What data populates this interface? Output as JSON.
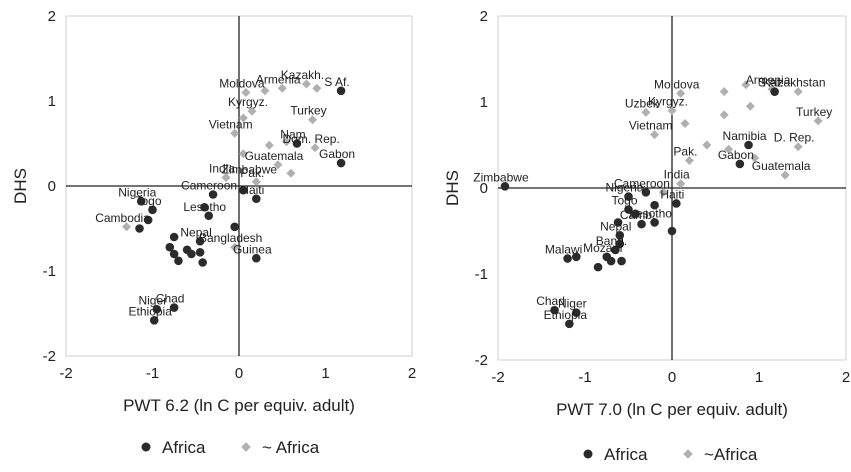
{
  "chart_data": [
    {
      "type": "scatter",
      "xlabel": "PWT 6.2 (ln C per equiv. adult)",
      "ylabel": "DHS",
      "xlim": [
        -2,
        2
      ],
      "ylim": [
        -2,
        2
      ],
      "xticks": [
        "-2",
        "-1",
        "0",
        "1",
        "2"
      ],
      "yticks": [
        "-2",
        "-1",
        "0",
        "1",
        "2"
      ],
      "grid": "off",
      "series": [
        {
          "name": "Africa",
          "points": [
            {
              "x": 1.18,
              "y": 0.27,
              "label": "Gabon"
            },
            {
              "x": 0.67,
              "y": 0.5,
              "label": "Nam"
            },
            {
              "x": 1.18,
              "y": 1.12,
              "label": "S Af."
            },
            {
              "x": -1.13,
              "y": -0.18,
              "label": "Nigeria"
            },
            {
              "x": -1.0,
              "y": -0.28,
              "label": "Togo"
            },
            {
              "x": -1.15,
              "y": -0.5,
              "label": ""
            },
            {
              "x": -1.05,
              "y": -0.4,
              "label": ""
            },
            {
              "x": -0.3,
              "y": -0.1,
              "label": "Cameroon"
            },
            {
              "x": -0.35,
              "y": -0.35,
              "label": "Lesotho"
            },
            {
              "x": -0.4,
              "y": -0.25,
              "label": ""
            },
            {
              "x": 0.05,
              "y": -0.05,
              "label": ""
            },
            {
              "x": 0.2,
              "y": -0.15,
              "label": "Haiti"
            },
            {
              "x": -0.45,
              "y": -0.65,
              "label": "Nepal"
            },
            {
              "x": -0.6,
              "y": -0.75,
              "label": ""
            },
            {
              "x": -0.75,
              "y": -0.8,
              "label": ""
            },
            {
              "x": -0.7,
              "y": -0.88,
              "label": ""
            },
            {
              "x": -0.55,
              "y": -0.8,
              "label": ""
            },
            {
              "x": -0.42,
              "y": -0.9,
              "label": ""
            },
            {
              "x": -0.45,
              "y": -0.78,
              "label": ""
            },
            {
              "x": -0.8,
              "y": -0.72,
              "label": ""
            },
            {
              "x": -0.75,
              "y": -0.6,
              "label": ""
            },
            {
              "x": -0.05,
              "y": -0.48,
              "label": ""
            },
            {
              "x": 0.2,
              "y": -0.85,
              "label": "Guinea"
            },
            {
              "x": -0.75,
              "y": -1.43,
              "label": "Chad"
            },
            {
              "x": -0.95,
              "y": -1.45,
              "label": "Niger"
            },
            {
              "x": -0.98,
              "y": -1.58,
              "label": "Ethiopia"
            }
          ]
        },
        {
          "name": "~ Africa",
          "points": [
            {
              "x": 0.5,
              "y": 1.15,
              "label": "Armenia"
            },
            {
              "x": 0.78,
              "y": 1.2,
              "label": "Kazakh."
            },
            {
              "x": 0.3,
              "y": 1.12,
              "label": ""
            },
            {
              "x": 0.9,
              "y": 1.15,
              "label": ""
            },
            {
              "x": 0.08,
              "y": 1.1,
              "label": "Moldova"
            },
            {
              "x": 0.15,
              "y": 0.88,
              "label": "Kyrgyz."
            },
            {
              "x": 0.05,
              "y": 0.8,
              "label": ""
            },
            {
              "x": 0.85,
              "y": 0.78,
              "label": "Turkey"
            },
            {
              "x": -0.05,
              "y": 0.62,
              "label": "Vietnam"
            },
            {
              "x": 0.05,
              "y": 0.38,
              "label": ""
            },
            {
              "x": 0.35,
              "y": 0.48,
              "label": ""
            },
            {
              "x": 0.55,
              "y": 0.52,
              "label": ""
            },
            {
              "x": 0.88,
              "y": 0.45,
              "label": "Dom. Rep."
            },
            {
              "x": 0.45,
              "y": 0.25,
              "label": "Guatemala"
            },
            {
              "x": -0.15,
              "y": 0.1,
              "label": "India"
            },
            {
              "x": 0.2,
              "y": 0.05,
              "label": "Pak."
            },
            {
              "x": 0.6,
              "y": 0.15,
              "label": ""
            },
            {
              "x": -1.3,
              "y": -0.48,
              "label": "Cambodia"
            },
            {
              "x": -0.05,
              "y": -0.72,
              "label": "Bangladesh"
            }
          ]
        }
      ],
      "annotations": [
        {
          "text": "Zimbabwe",
          "x": 0.12,
          "y": 0.1
        }
      ],
      "legend": "bottom",
      "colors": {
        "Africa": "#2b2b2b",
        "~ Africa": "#b0b0b0"
      }
    },
    {
      "type": "scatter",
      "xlabel": "PWT 7.0 (ln C per equiv. adult)",
      "ylabel": "DHS",
      "xlim": [
        -2,
        2
      ],
      "ylim": [
        -2,
        2
      ],
      "xticks": [
        "-2",
        "-1",
        "0",
        "1",
        "2"
      ],
      "yticks": [
        "-2",
        "-1",
        "0",
        "1",
        "2"
      ],
      "grid": "off",
      "series": [
        {
          "name": "Africa",
          "points": [
            {
              "x": -1.92,
              "y": 0.02,
              "label": "Zimbabwe"
            },
            {
              "x": 0.88,
              "y": 0.5,
              "label": "Namibia"
            },
            {
              "x": 0.78,
              "y": 0.28,
              "label": "Gabon"
            },
            {
              "x": 1.18,
              "y": 1.12,
              "label": "S Af."
            },
            {
              "x": -0.5,
              "y": -0.1,
              "label": "Nigeria"
            },
            {
              "x": -0.3,
              "y": -0.05,
              "label": "Cameroon"
            },
            {
              "x": -0.5,
              "y": -0.25,
              "label": "Togo"
            },
            {
              "x": -0.42,
              "y": -0.3,
              "label": ""
            },
            {
              "x": -0.2,
              "y": -0.2,
              "label": ""
            },
            {
              "x": 0.05,
              "y": -0.18,
              "label": "Haiti"
            },
            {
              "x": -0.2,
              "y": -0.4,
              "label": "Lesotho"
            },
            {
              "x": -0.35,
              "y": -0.42,
              "label": "Camb."
            },
            {
              "x": 0.0,
              "y": -0.5,
              "label": ""
            },
            {
              "x": -0.62,
              "y": -0.4,
              "label": ""
            },
            {
              "x": -0.6,
              "y": -0.55,
              "label": "Nepal"
            },
            {
              "x": -0.6,
              "y": -0.65,
              "label": ""
            },
            {
              "x": -0.65,
              "y": -0.72,
              "label": "Bang."
            },
            {
              "x": -0.75,
              "y": -0.8,
              "label": "Mozam"
            },
            {
              "x": -0.85,
              "y": -0.92,
              "label": ""
            },
            {
              "x": -0.7,
              "y": -0.85,
              "label": ""
            },
            {
              "x": -0.58,
              "y": -0.85,
              "label": ""
            },
            {
              "x": -1.2,
              "y": -0.82,
              "label": "Malawi"
            },
            {
              "x": -1.1,
              "y": -0.8,
              "label": ""
            },
            {
              "x": -1.35,
              "y": -1.42,
              "label": "Chad"
            },
            {
              "x": -1.1,
              "y": -1.45,
              "label": "Niger"
            },
            {
              "x": -1.18,
              "y": -1.58,
              "label": "Ethiopia"
            }
          ]
        },
        {
          "name": "~Africa",
          "points": [
            {
              "x": 1.45,
              "y": 1.12,
              "label": "Kazakhstan"
            },
            {
              "x": 1.15,
              "y": 1.15,
              "label": "Armenia"
            },
            {
              "x": 0.85,
              "y": 1.2,
              "label": ""
            },
            {
              "x": 0.6,
              "y": 1.12,
              "label": ""
            },
            {
              "x": 0.1,
              "y": 1.1,
              "label": "Moldova"
            },
            {
              "x": 0.0,
              "y": 0.9,
              "label": "Kyrgyz."
            },
            {
              "x": -0.3,
              "y": 0.88,
              "label": "Uzbek"
            },
            {
              "x": 0.6,
              "y": 0.85,
              "label": ""
            },
            {
              "x": 0.9,
              "y": 0.95,
              "label": ""
            },
            {
              "x": 1.68,
              "y": 0.78,
              "label": "Turkey"
            },
            {
              "x": -0.2,
              "y": 0.62,
              "label": "Vietnam"
            },
            {
              "x": 0.15,
              "y": 0.75,
              "label": ""
            },
            {
              "x": 0.4,
              "y": 0.5,
              "label": ""
            },
            {
              "x": 0.65,
              "y": 0.45,
              "label": ""
            },
            {
              "x": 1.45,
              "y": 0.48,
              "label": "D. Rep."
            },
            {
              "x": 1.3,
              "y": 0.15,
              "label": "Guatemala"
            },
            {
              "x": 0.2,
              "y": 0.32,
              "label": "Pak."
            },
            {
              "x": 0.1,
              "y": 0.05,
              "label": "India"
            },
            {
              "x": 0.95,
              "y": 0.35,
              "label": ""
            },
            {
              "x": -0.1,
              "y": -0.05,
              "label": ""
            }
          ]
        }
      ],
      "legend": "bottom",
      "colors": {
        "Africa": "#2b2b2b",
        "~Africa": "#b0b0b0"
      }
    }
  ]
}
